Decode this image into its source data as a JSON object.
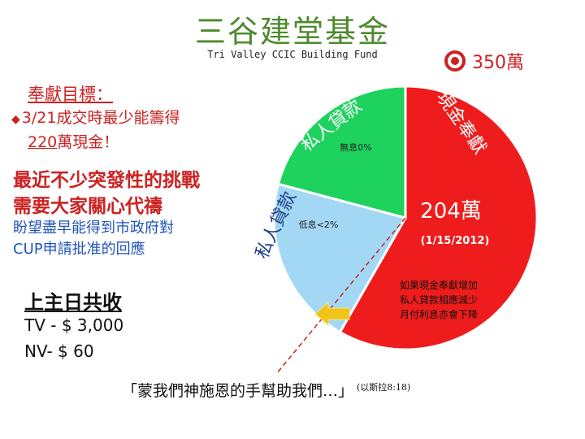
{
  "header": {
    "title": "三谷建堂基金",
    "subtitle": "Tri Valley CCIC Building Fund",
    "target_amount": "350萬",
    "target_icon": "target-icon"
  },
  "goal": {
    "heading": "奉獻目標：",
    "line1": "3/21成交時最少能籌得",
    "line2_amount": "220",
    "line2_rest": "萬現金！"
  },
  "challenge": {
    "line1": "最近不少突發性的挑戰",
    "line2": "需要大家關心代禱"
  },
  "hope": {
    "line1": "盼望盡早能得到市政府對",
    "line2": "CUP申請批准的回應"
  },
  "offering": {
    "heading": "上主日共收",
    "tv": "TV - $ 3,000",
    "nv": "NV- $ 60"
  },
  "quote": {
    "text": "「蒙我們神施恩的手幫助我們…」",
    "ref": "(以斯拉8:18)"
  },
  "chart_data": {
    "type": "pie",
    "total": 350,
    "slices": [
      {
        "label": "現金奉獻",
        "value": 204,
        "value_label": "204萬",
        "date_label": "(1/15/2012)",
        "color": "#ee1c1c"
      },
      {
        "label": "私人貸款",
        "sub_label": "低息<2%",
        "value": 73,
        "color": "#a3d8f4"
      },
      {
        "label": "私人貸款",
        "sub_label": "無息0%",
        "value": 73,
        "color": "#1ed25e"
      }
    ],
    "annotation": "如果現金奉獻增加私人貸款相應減少月付利息亦會下降",
    "annotation_lines": [
      "如果現金奉獻增加",
      "私人貸款相應減少",
      "月付利息亦會下降"
    ]
  }
}
